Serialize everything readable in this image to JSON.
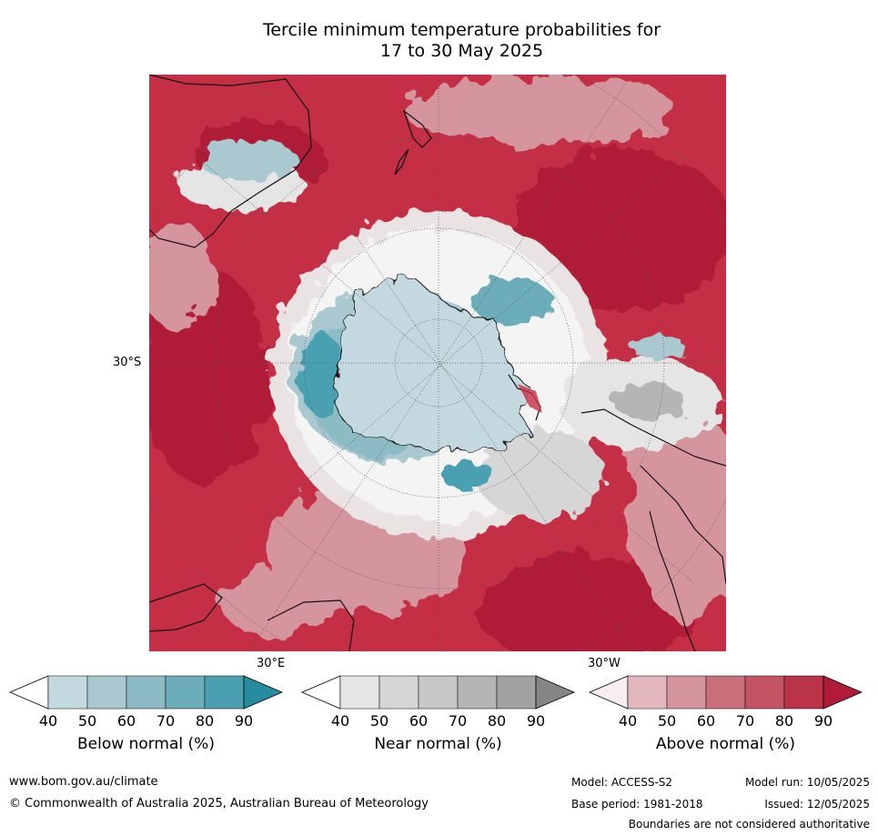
{
  "title_line1": "Tercile minimum temperature probabilities for",
  "title_line2": "17 to 30 May 2025",
  "map": {
    "lat_label": "30°S",
    "lon_label_east": "30°E",
    "lon_label_west": "30°W"
  },
  "colors": {
    "above": [
      "#f9eeef",
      "#e2b7bd",
      "#d5959d",
      "#cc6f7c",
      "#c45464",
      "#bb3349",
      "#b01c37"
    ],
    "near": [
      "#ffffff",
      "#e5e5e5",
      "#d6d6d6",
      "#c8c8c8",
      "#b5b5b5",
      "#a2a2a2",
      "#858585"
    ],
    "below": [
      "#ffffff",
      "#c3d9df",
      "#aac8cf",
      "#8dbbc4",
      "#6cadba",
      "#4aa0b0",
      "#278c9f"
    ]
  },
  "legends": [
    {
      "key": "below",
      "title": "Below normal (%)",
      "ticks": [
        "40",
        "50",
        "60",
        "70",
        "80",
        "90"
      ]
    },
    {
      "key": "near",
      "title": "Near normal (%)",
      "ticks": [
        "40",
        "50",
        "60",
        "70",
        "80",
        "90"
      ]
    },
    {
      "key": "above",
      "title": "Above normal (%)",
      "ticks": [
        "40",
        "50",
        "60",
        "70",
        "80",
        "90"
      ]
    }
  ],
  "footer": {
    "website": "www.bom.gov.au/climate",
    "copyright": "© Commonwealth of Australia 2025, Australian Bureau of Meteorology",
    "model": "Model: ACCESS-S2",
    "base_period": "Base period: 1981-2018",
    "model_run": "Model run: 10/05/2025",
    "issued": "Issued: 12/05/2025",
    "disclaimer": "Boundaries are not considered authoritative"
  }
}
